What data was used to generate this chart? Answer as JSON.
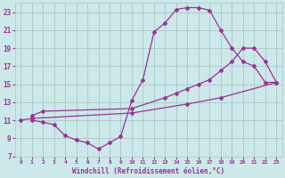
{
  "xlabel": "Windchill (Refroidissement éolien,°C)",
  "bg_color": "#cce8e8",
  "grid_color": "#aac8c8",
  "line_color": "#993399",
  "xlim": [
    -0.5,
    23.5
  ],
  "ylim": [
    7,
    24
  ],
  "xticks": [
    0,
    1,
    2,
    3,
    4,
    5,
    6,
    7,
    8,
    9,
    10,
    11,
    12,
    13,
    14,
    15,
    16,
    17,
    18,
    19,
    20,
    21,
    22,
    23
  ],
  "yticks": [
    7,
    9,
    11,
    13,
    15,
    17,
    19,
    21,
    23
  ],
  "line1_x": [
    1,
    2,
    3,
    4,
    5,
    6,
    7,
    8,
    9,
    10,
    11,
    12,
    13,
    14,
    15,
    16,
    17,
    18,
    19,
    20,
    21,
    22,
    23
  ],
  "line1_y": [
    11.0,
    10.8,
    10.5,
    9.3,
    8.8,
    8.5,
    7.8,
    8.5,
    9.2,
    13.2,
    15.5,
    20.8,
    21.8,
    23.3,
    23.5,
    23.5,
    23.2,
    21.0,
    19.0,
    17.5,
    17.0,
    15.2,
    15.2
  ],
  "line2_x": [
    1,
    2,
    10,
    13,
    14,
    15,
    16,
    17,
    18,
    19,
    20,
    21,
    22,
    23
  ],
  "line2_y": [
    11.5,
    12.0,
    12.3,
    13.5,
    14.0,
    14.5,
    15.0,
    15.5,
    16.5,
    17.5,
    19.0,
    19.0,
    17.5,
    15.2
  ],
  "line3_x": [
    0,
    1,
    10,
    15,
    18,
    23
  ],
  "line3_y": [
    11.0,
    11.2,
    11.8,
    12.8,
    13.5,
    15.2
  ]
}
